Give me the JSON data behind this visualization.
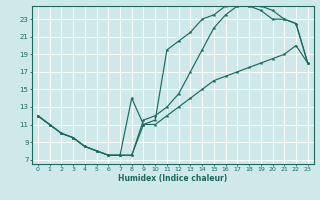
{
  "xlabel": "Humidex (Indice chaleur)",
  "bg_color": "#cfe8ea",
  "grid_color": "#ffffff",
  "line_color": "#1a6b5e",
  "xlim": [
    -0.5,
    23.5
  ],
  "ylim": [
    6.5,
    24.5
  ],
  "xticks": [
    0,
    1,
    2,
    3,
    4,
    5,
    6,
    7,
    8,
    9,
    10,
    11,
    12,
    13,
    14,
    15,
    16,
    17,
    18,
    19,
    20,
    21,
    22,
    23
  ],
  "yticks": [
    7,
    9,
    11,
    13,
    15,
    17,
    19,
    21,
    23
  ],
  "line1_x": [
    0,
    1,
    2,
    3,
    4,
    5,
    6,
    7,
    8,
    9,
    10,
    11,
    12,
    13,
    14,
    15,
    16,
    17,
    18,
    19,
    20,
    21,
    22,
    23
  ],
  "line1_y": [
    12,
    11,
    10,
    9.5,
    8.5,
    8,
    7.5,
    7.5,
    7.5,
    11.5,
    12,
    13,
    14.5,
    17,
    19.5,
    22,
    23.5,
    24.5,
    24.5,
    24.5,
    24,
    23,
    22.5,
    18
  ],
  "line2_x": [
    0,
    1,
    2,
    3,
    4,
    5,
    6,
    7,
    8,
    9,
    10,
    11,
    12,
    13,
    14,
    15,
    16,
    17,
    18,
    19,
    20,
    21,
    22,
    23
  ],
  "line2_y": [
    12,
    11,
    10,
    9.5,
    8.5,
    8,
    7.5,
    7.5,
    14,
    11,
    11.5,
    19.5,
    20.5,
    21.5,
    23,
    23.5,
    24.5,
    24.5,
    24.5,
    24,
    23,
    23,
    22.5,
    18
  ],
  "line3_x": [
    0,
    1,
    2,
    3,
    4,
    5,
    6,
    7,
    8,
    9,
    10,
    11,
    12,
    13,
    14,
    15,
    16,
    17,
    18,
    19,
    20,
    21,
    22,
    23
  ],
  "line3_y": [
    12,
    11,
    10,
    9.5,
    8.5,
    8,
    7.5,
    7.5,
    7.5,
    11,
    11,
    12,
    13,
    14,
    15,
    16,
    16.5,
    17,
    17.5,
    18,
    18.5,
    19,
    20,
    18
  ]
}
